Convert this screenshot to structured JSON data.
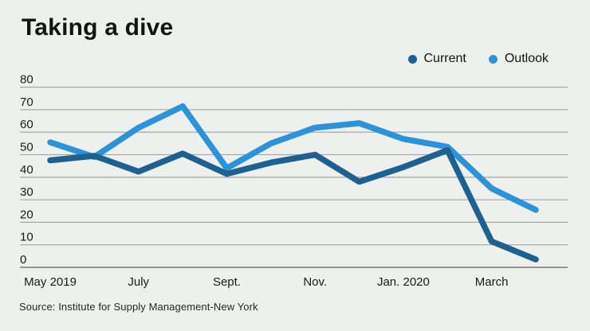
{
  "page": {
    "title": "Taking a dive",
    "source": "Source: Institute for Supply Management-New York"
  },
  "chart_data": {
    "type": "line",
    "title": "Taking a dive",
    "x_count": 12,
    "xtick_labels": [
      "May 2019",
      "July",
      "Sept.",
      "Nov.",
      "Jan. 2020",
      "March"
    ],
    "xtick_indices": [
      0,
      2,
      4,
      6,
      8,
      10
    ],
    "yticks": [
      0,
      10,
      20,
      30,
      40,
      50,
      60,
      70,
      80
    ],
    "ylim": [
      0,
      80
    ],
    "grid": true,
    "legend_position": "top-right",
    "background_color": "#eef0ee",
    "gridline_color": "#a5a5a5",
    "axis_line_color": "#8a8a8a",
    "series": [
      {
        "name": "Current",
        "color": "#1e6191",
        "values": [
          47.5,
          49.5,
          42.5,
          50.5,
          41.5,
          46.5,
          50,
          38,
          44.5,
          52,
          11.5,
          3.5
        ]
      },
      {
        "name": "Outlook",
        "color": "#2b93da",
        "values": [
          55.5,
          49,
          62,
          71.5,
          44,
          55,
          62,
          64,
          57,
          53.5,
          35,
          25.5
        ]
      }
    ],
    "source": "Source: Institute for Supply Management-New York"
  }
}
